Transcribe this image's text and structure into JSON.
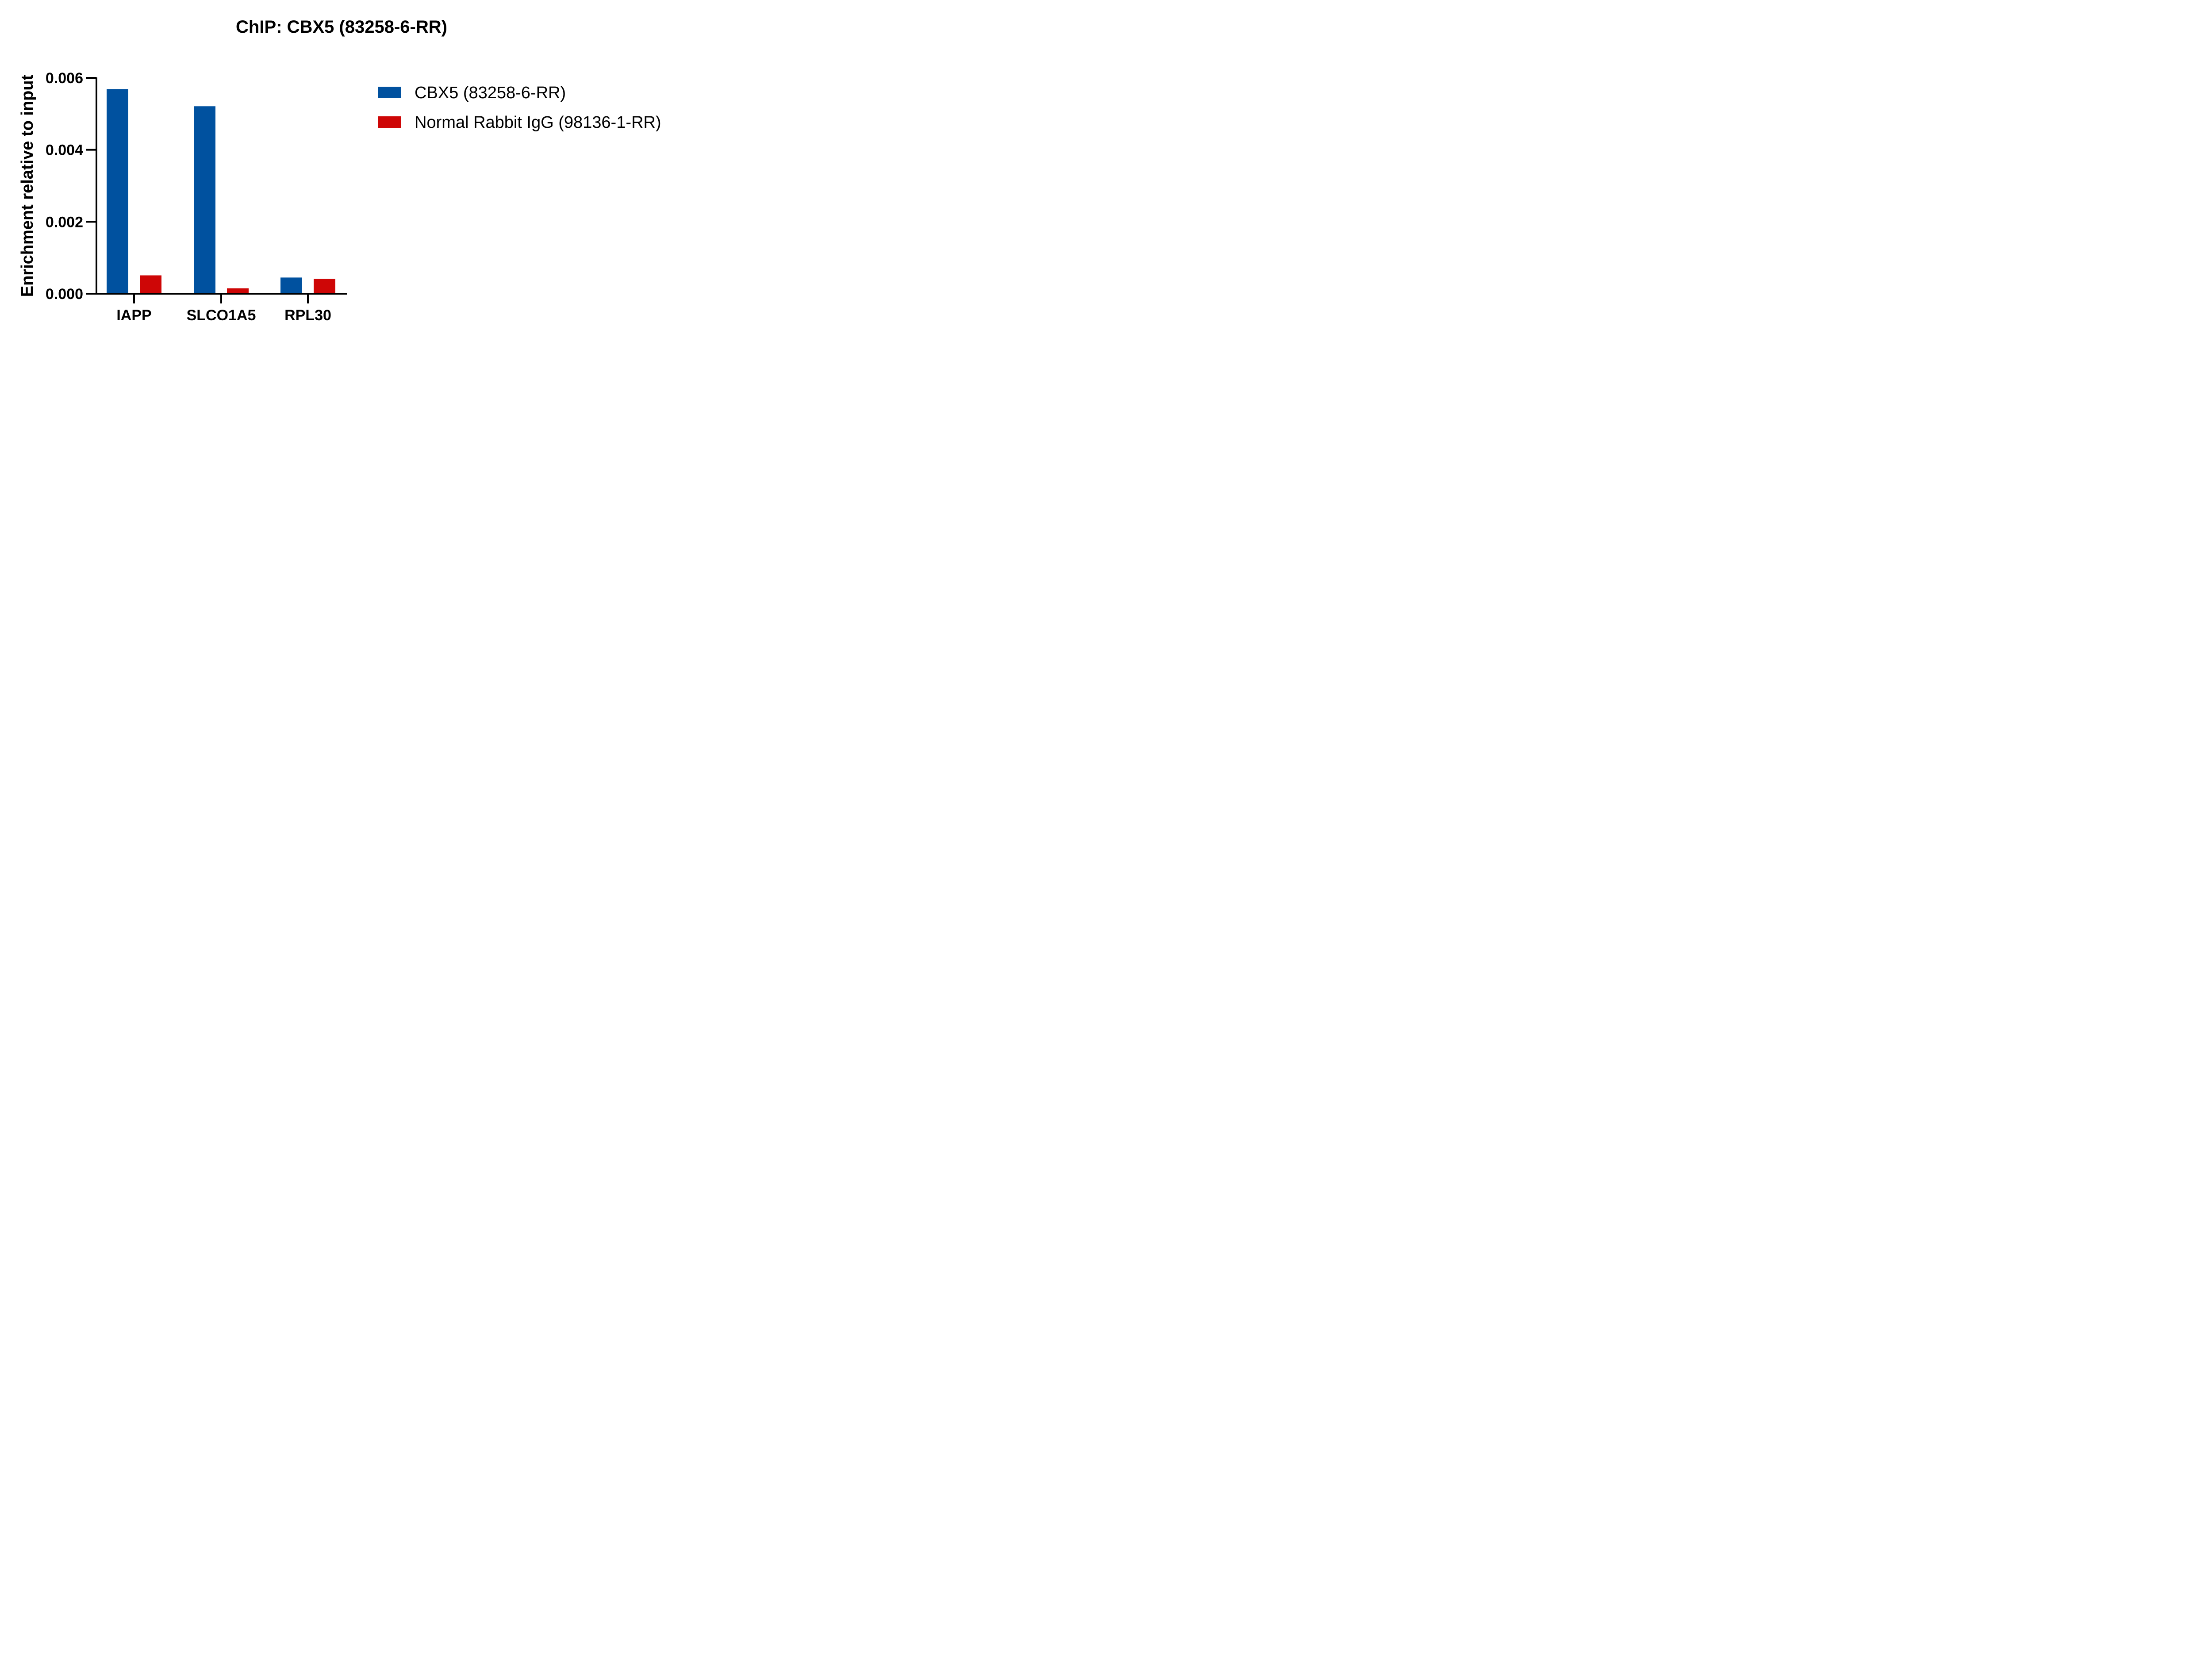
{
  "chart_data": {
    "type": "bar",
    "title": "ChIP: CBX5 (83258-6-RR)",
    "xlabel": "",
    "ylabel": "Enrichment relative to input",
    "categories": [
      "IAPP",
      "SLCO1A5",
      "RPL30"
    ],
    "series": [
      {
        "name": "CBX5 (83258-6-RR)",
        "color": "#00519F",
        "values": [
          0.00569,
          0.00521,
          0.00045
        ]
      },
      {
        "name": "Normal Rabbit IgG (98136-1-RR)",
        "color": "#CE0606",
        "values": [
          0.00051,
          0.00015,
          0.00041
        ]
      }
    ],
    "ylim": [
      0,
      0.006
    ],
    "yticks": [
      0.0,
      0.002,
      0.004,
      0.006
    ],
    "ytick_labels": [
      "0.000",
      "0.002",
      "0.004",
      "0.006"
    ],
    "grid": false,
    "legend_position": "right"
  }
}
